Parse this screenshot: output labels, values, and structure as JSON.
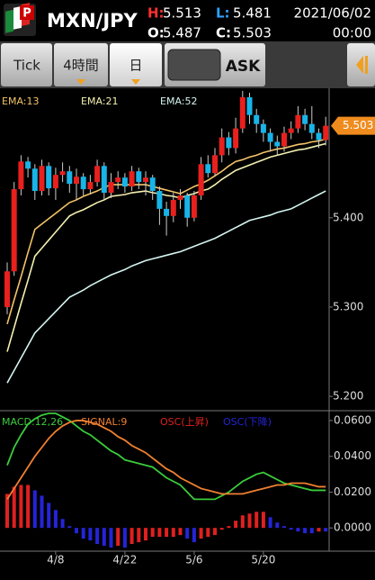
{
  "header": {
    "symbol": "MXN/JPY",
    "high_label": "H:",
    "high": 5.513,
    "low_label": "L:",
    "low": 5.481,
    "open_label": "O:",
    "open": 5.487,
    "close_label": "C:",
    "close": 5.503,
    "date": "2021/06/02",
    "time": "00:00"
  },
  "toolbar": {
    "tick": "Tick",
    "hour4": "4時間",
    "day": "日",
    "ask": "ASK"
  },
  "chart_data": [
    {
      "type": "candlestick",
      "up_color": "#e8201e",
      "down_color": "#18b4e8",
      "categories": [
        null,
        null,
        null,
        null,
        null,
        null,
        null,
        "4/8",
        null,
        null,
        null,
        null,
        null,
        null,
        null,
        null,
        null,
        "4/22",
        null,
        null,
        null,
        null,
        null,
        null,
        null,
        null,
        null,
        "5/6",
        null,
        null,
        null,
        null,
        null,
        null,
        null,
        null,
        null,
        "5/20",
        null,
        null,
        null,
        null,
        null,
        null,
        null,
        null,
        null
      ],
      "open": [
        5.3,
        5.34,
        5.432,
        5.463,
        5.455,
        5.43,
        5.458,
        5.433,
        5.448,
        5.452,
        5.438,
        5.446,
        5.432,
        5.44,
        5.458,
        5.428,
        5.44,
        5.445,
        5.435,
        5.452,
        5.44,
        5.445,
        5.43,
        5.41,
        5.402,
        5.42,
        5.425,
        5.4,
        5.425,
        5.46,
        5.45,
        5.47,
        5.49,
        5.478,
        5.5,
        5.535,
        5.515,
        5.505,
        5.495,
        5.485,
        5.48,
        5.495,
        5.5,
        5.515,
        5.505,
        5.495,
        5.487
      ],
      "high": [
        5.35,
        5.44,
        5.47,
        5.468,
        5.46,
        5.465,
        5.462,
        5.456,
        5.462,
        5.458,
        5.455,
        5.45,
        5.448,
        5.465,
        5.462,
        5.45,
        5.452,
        5.45,
        5.458,
        5.456,
        5.452,
        5.448,
        5.435,
        5.418,
        5.428,
        5.432,
        5.428,
        5.43,
        5.468,
        5.47,
        5.478,
        5.5,
        5.496,
        5.512,
        5.542,
        5.54,
        5.522,
        5.51,
        5.5,
        5.492,
        5.502,
        5.508,
        5.525,
        5.522,
        5.525,
        5.5,
        5.513
      ],
      "low": [
        5.292,
        5.335,
        5.425,
        5.445,
        5.42,
        5.425,
        5.425,
        5.42,
        5.44,
        5.428,
        5.42,
        5.425,
        5.426,
        5.435,
        5.42,
        5.422,
        5.432,
        5.428,
        5.43,
        5.432,
        5.425,
        5.42,
        5.392,
        5.38,
        5.395,
        5.41,
        5.39,
        5.396,
        5.42,
        5.445,
        5.446,
        5.462,
        5.47,
        5.472,
        5.495,
        5.505,
        5.495,
        5.485,
        5.474,
        5.47,
        5.474,
        5.488,
        5.495,
        5.498,
        5.488,
        5.478,
        5.481
      ],
      "close": [
        5.34,
        5.432,
        5.463,
        5.455,
        5.43,
        5.458,
        5.433,
        5.448,
        5.452,
        5.438,
        5.446,
        5.432,
        5.44,
        5.458,
        5.428,
        5.44,
        5.445,
        5.435,
        5.452,
        5.44,
        5.445,
        5.43,
        5.41,
        5.402,
        5.42,
        5.425,
        5.4,
        5.425,
        5.46,
        5.45,
        5.47,
        5.49,
        5.478,
        5.5,
        5.535,
        5.515,
        5.505,
        5.495,
        5.485,
        5.48,
        5.495,
        5.5,
        5.515,
        5.505,
        5.495,
        5.487,
        5.503
      ],
      "ylim": [
        5.185,
        5.546
      ],
      "yticks": [
        {
          "value": 5.2,
          "label": "5.200"
        },
        {
          "value": 5.3,
          "label": "5.300"
        },
        {
          "value": 5.4,
          "label": "5.400"
        }
      ],
      "series": [
        {
          "name": "EMA:13",
          "color": "#f3c468",
          "values": [
            5.281,
            5.308,
            5.334,
            5.361,
            5.387,
            5.393,
            5.399,
            5.405,
            5.411,
            5.417,
            5.42,
            5.424,
            5.427,
            5.43,
            5.434,
            5.437,
            5.437,
            5.437,
            5.437,
            5.437,
            5.437,
            5.435,
            5.433,
            5.431,
            5.429,
            5.427,
            5.431,
            5.435,
            5.438,
            5.442,
            5.447,
            5.452,
            5.458,
            5.463,
            5.465,
            5.468,
            5.47,
            5.473,
            5.475,
            5.477,
            5.478,
            5.48,
            5.482,
            5.483,
            5.485,
            5.486,
            5.488
          ]
        },
        {
          "name": "EMA:21",
          "color": "#f4f0b0",
          "values": [
            5.25,
            5.277,
            5.304,
            5.33,
            5.357,
            5.366,
            5.375,
            5.384,
            5.393,
            5.402,
            5.406,
            5.409,
            5.413,
            5.417,
            5.42,
            5.424,
            5.425,
            5.426,
            5.428,
            5.429,
            5.43,
            5.428,
            5.427,
            5.425,
            5.424,
            5.422,
            5.425,
            5.427,
            5.43,
            5.432,
            5.437,
            5.443,
            5.448,
            5.453,
            5.456,
            5.459,
            5.462,
            5.465,
            5.468,
            5.47,
            5.472,
            5.474,
            5.476,
            5.477,
            5.479,
            5.481,
            5.483
          ]
        },
        {
          "name": "EMA:52",
          "color": "#d4f4f0",
          "values": [
            5.215,
            5.229,
            5.243,
            5.257,
            5.271,
            5.279,
            5.287,
            5.295,
            5.303,
            5.311,
            5.315,
            5.319,
            5.324,
            5.328,
            5.332,
            5.336,
            5.339,
            5.342,
            5.346,
            5.349,
            5.352,
            5.354,
            5.356,
            5.358,
            5.36,
            5.362,
            5.365,
            5.368,
            5.371,
            5.374,
            5.377,
            5.381,
            5.385,
            5.389,
            5.393,
            5.397,
            5.399,
            5.401,
            5.403,
            5.406,
            5.408,
            5.41,
            5.414,
            5.418,
            5.422,
            5.426,
            5.43
          ]
        }
      ]
    },
    {
      "type": "line",
      "ylim": [
        -0.012,
        0.0645
      ],
      "yticks": [
        {
          "value": 0.06,
          "label": "0.0600"
        },
        {
          "value": 0.04,
          "label": "0.0400"
        },
        {
          "value": 0.02,
          "label": "0.0200"
        },
        {
          "value": 0,
          "label": "0.0000"
        }
      ],
      "series": [
        {
          "name": "MACD:12,26",
          "color": "#3ccc3c",
          "kind": "line",
          "values": [
            0.035,
            0.045,
            0.052,
            0.058,
            0.061,
            0.063,
            0.064,
            0.064,
            0.062,
            0.06,
            0.057,
            0.054,
            0.052,
            0.049,
            0.046,
            0.043,
            0.041,
            0.038,
            0.037,
            0.036,
            0.035,
            0.034,
            0.031,
            0.028,
            0.026,
            0.024,
            0.02,
            0.016,
            0.016,
            0.016,
            0.016,
            0.018,
            0.02,
            0.023,
            0.026,
            0.028,
            0.03,
            0.031,
            0.029,
            0.027,
            0.025,
            0.024,
            0.023,
            0.022,
            0.021,
            0.021,
            0.021
          ]
        },
        {
          "name": "SIGNAL:9",
          "color": "#f08030",
          "kind": "line",
          "values": [
            0.016,
            0.022,
            0.028,
            0.034,
            0.04,
            0.045,
            0.05,
            0.054,
            0.057,
            0.059,
            0.06,
            0.06,
            0.059,
            0.058,
            0.056,
            0.054,
            0.051,
            0.049,
            0.046,
            0.044,
            0.042,
            0.039,
            0.036,
            0.033,
            0.031,
            0.028,
            0.026,
            0.024,
            0.022,
            0.021,
            0.02,
            0.019,
            0.019,
            0.019,
            0.019,
            0.02,
            0.021,
            0.022,
            0.023,
            0.024,
            0.024,
            0.025,
            0.025,
            0.025,
            0.024,
            0.023,
            0.023
          ]
        },
        {
          "name": "OSC(上昇)",
          "color": "#e02020",
          "kind": "bar",
          "values": [
            0.019,
            0.023,
            0.024,
            0.024,
            null,
            null,
            null,
            null,
            null,
            null,
            null,
            null,
            null,
            null,
            null,
            null,
            -0.01,
            null,
            -0.009,
            -0.008,
            -0.007,
            -0.005,
            -0.005,
            -0.005,
            -0.005,
            -0.004,
            null,
            null,
            -0.006,
            -0.005,
            -0.004,
            -0.001,
            0.001,
            0.004,
            0.007,
            0.008,
            0.009,
            0.009,
            null,
            null,
            null,
            null,
            null,
            null,
            null,
            -0.002,
            null
          ]
        },
        {
          "name": "OSC(下降)",
          "color": "#2424d8",
          "kind": "bar",
          "values": [
            null,
            null,
            null,
            null,
            0.021,
            0.018,
            0.014,
            0.01,
            0.005,
            0.001,
            -0.003,
            -0.006,
            -0.007,
            -0.009,
            -0.01,
            -0.011,
            null,
            -0.011,
            null,
            null,
            null,
            null,
            null,
            null,
            null,
            null,
            -0.006,
            -0.008,
            null,
            null,
            null,
            null,
            null,
            null,
            null,
            null,
            null,
            null,
            0.006,
            0.003,
            0.001,
            -0.001,
            -0.002,
            -0.003,
            -0.003,
            null,
            -0.002
          ]
        }
      ]
    }
  ]
}
